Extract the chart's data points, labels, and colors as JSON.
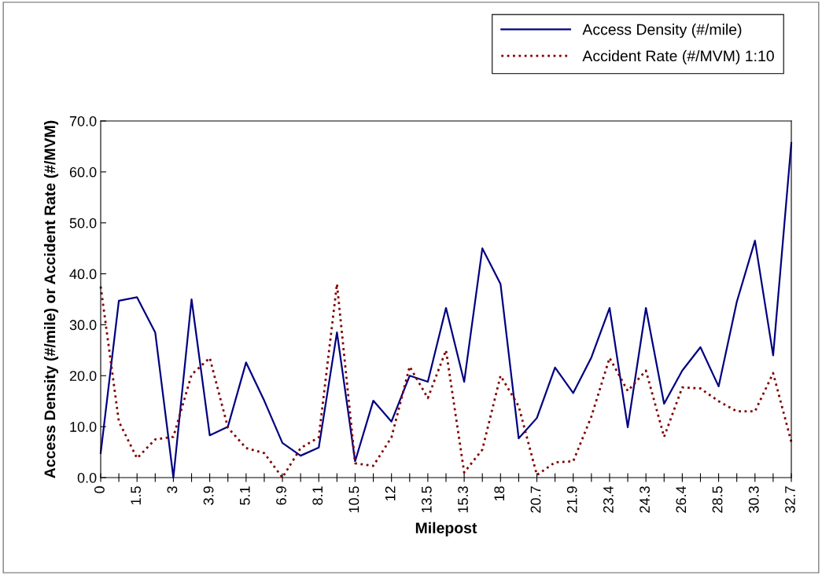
{
  "chart_data": {
    "type": "line",
    "xlabel": "Milepost",
    "ylabel": "Access Density (#/mile) or Accident Rate (#/MVM)",
    "categories": [
      "0",
      null,
      "1.5",
      null,
      "3",
      null,
      "3.9",
      null,
      "5.1",
      null,
      "6.9",
      null,
      "8.1",
      null,
      "10.5",
      null,
      "12",
      null,
      "13.5",
      null,
      "15.3",
      null,
      "18",
      null,
      "20.7",
      null,
      "21.9",
      null,
      "23.4",
      null,
      "24.3",
      null,
      "26.4",
      null,
      "28.5",
      null,
      "30.3",
      null,
      "32.7"
    ],
    "series": [
      {
        "name": "Access Density (#/mile)",
        "color": "#000080",
        "line_style": "solid",
        "values": [
          4.8,
          34.7,
          35.4,
          28.5,
          0,
          35,
          8.3,
          10,
          22.6,
          15.1,
          6.8,
          4.3,
          5.9,
          28.5,
          3.2,
          15.1,
          11,
          20,
          18.8,
          33.3,
          18.8,
          45,
          38,
          7.7,
          11.7,
          21.6,
          16.6,
          23.6,
          33.3,
          9.9,
          33.3,
          14.5,
          21,
          25.6,
          17.9,
          34.5,
          46.5,
          24,
          65.7
        ]
      },
      {
        "name": "Accident Rate (#/MVM) 1:10",
        "color": "#800000",
        "line_style": "dotted",
        "values": [
          37.5,
          11,
          3.8,
          7.5,
          8,
          20.2,
          23.5,
          9.8,
          5.8,
          4.8,
          0,
          5.8,
          7.9,
          38,
          2.8,
          2.3,
          7.9,
          21.8,
          15.6,
          25,
          1,
          5.5,
          20,
          14,
          0.5,
          3,
          3.2,
          12,
          23.5,
          17,
          21,
          8,
          17.7,
          17.5,
          15,
          13,
          13,
          20.5,
          7
        ]
      }
    ],
    "ylim": [
      0,
      70
    ],
    "yticks": [
      {
        "value": 0,
        "label": "0.0"
      },
      {
        "value": 10,
        "label": "10.0"
      },
      {
        "value": 20,
        "label": "20.0"
      },
      {
        "value": 30,
        "label": "30.0"
      },
      {
        "value": 40,
        "label": "40.0"
      },
      {
        "value": 50,
        "label": "50.0"
      },
      {
        "value": 60,
        "label": "60.0"
      },
      {
        "value": 70,
        "label": "70.0"
      }
    ],
    "grid": false,
    "legend": "top right",
    "marker": "none"
  }
}
